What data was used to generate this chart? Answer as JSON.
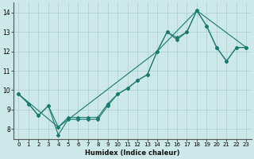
{
  "xlabel": "Humidex (Indice chaleur)",
  "bg_color": "#cce8e8",
  "grid_color": "#aacfcf",
  "line_color": "#1a7a6e",
  "xlim": [
    -0.5,
    23.5
  ],
  "ylim": [
    7.5,
    14.5
  ],
  "xticks": [
    0,
    1,
    2,
    3,
    4,
    5,
    6,
    7,
    8,
    9,
    10,
    11,
    12,
    13,
    14,
    15,
    16,
    17,
    18,
    19,
    20,
    21,
    22,
    23
  ],
  "yticks": [
    8,
    9,
    10,
    11,
    12,
    13,
    14
  ],
  "line1_x": [
    0,
    1,
    2,
    3,
    4,
    5,
    6,
    7,
    8,
    9,
    10,
    11,
    12,
    13,
    14,
    15,
    16,
    17,
    18,
    19,
    20,
    21,
    22,
    23
  ],
  "line1_y": [
    9.8,
    9.3,
    8.7,
    9.2,
    8.1,
    8.6,
    8.6,
    8.6,
    8.6,
    9.3,
    9.8,
    10.1,
    10.5,
    10.8,
    12.0,
    13.0,
    12.7,
    13.0,
    14.1,
    13.3,
    12.2,
    11.5,
    12.2,
    12.2
  ],
  "line2_x": [
    0,
    1,
    2,
    3,
    4,
    5,
    6,
    7,
    8,
    9,
    10,
    11,
    12,
    13,
    14,
    15,
    16,
    17,
    18,
    19,
    20,
    21,
    22,
    23
  ],
  "line2_y": [
    9.8,
    9.3,
    8.7,
    9.2,
    7.7,
    8.5,
    8.5,
    8.5,
    8.5,
    9.2,
    9.8,
    10.1,
    10.5,
    10.8,
    12.0,
    13.0,
    12.6,
    13.0,
    14.1,
    13.3,
    12.2,
    11.5,
    12.2,
    12.2
  ],
  "line3_x": [
    0,
    4,
    14,
    18,
    23
  ],
  "line3_y": [
    9.8,
    8.1,
    12.0,
    14.1,
    12.2
  ],
  "xlabel_fontsize": 6,
  "xlabel_fontweight": "bold",
  "tick_fontsize": 5,
  "marker": "D",
  "markersize": 2.0,
  "linewidth": 0.8
}
